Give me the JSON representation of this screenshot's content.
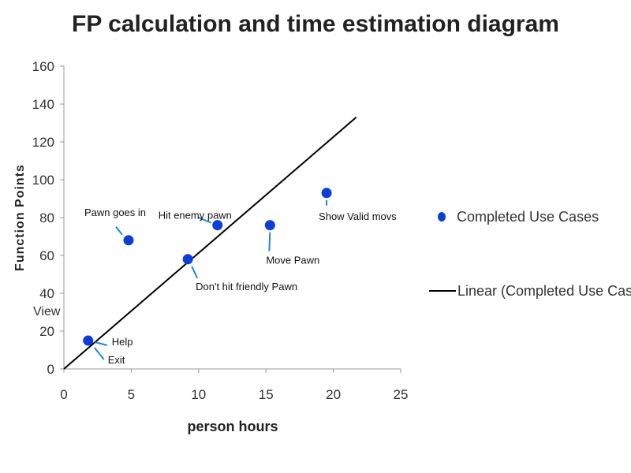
{
  "chart_data": {
    "type": "scatter",
    "title": "FP calculation and time estimation diagram",
    "xlabel": "person hours",
    "ylabel": "Function Points",
    "xlim": [
      0,
      25
    ],
    "ylim": [
      0,
      160
    ],
    "x_ticks": [
      "0",
      "5",
      "10",
      "15",
      "20",
      "25"
    ],
    "y_ticks": [
      "0",
      "20",
      "40",
      "60",
      "80",
      "100",
      "120",
      "140",
      "160"
    ],
    "grid": false,
    "legend_position": "right",
    "series": [
      {
        "name": "Completed Use Cases",
        "color": "#0a3de0",
        "points": [
          {
            "x": 1.8,
            "y": 15,
            "labels": [
              "Help",
              "Exit"
            ]
          },
          {
            "x": 4.8,
            "y": 68,
            "labels": [
              "Pawn goes in"
            ]
          },
          {
            "x": 9.2,
            "y": 58,
            "labels": [
              "Don't hit friendly Pawn"
            ]
          },
          {
            "x": 11.4,
            "y": 76,
            "labels": [
              "Hit enemy pawn"
            ]
          },
          {
            "x": 15.3,
            "y": 76,
            "labels": [
              "Move Pawn"
            ]
          },
          {
            "x": 19.5,
            "y": 93,
            "labels": [
              "Show Valid movs"
            ]
          }
        ]
      },
      {
        "name": "Linear (Completed Use Cases)",
        "color": "#000000",
        "kind": "trendline",
        "x": [
          0,
          21.7
        ],
        "y": [
          0,
          133
        ]
      }
    ],
    "annotation_color": "#1a8ad4",
    "stray_text": "View"
  }
}
